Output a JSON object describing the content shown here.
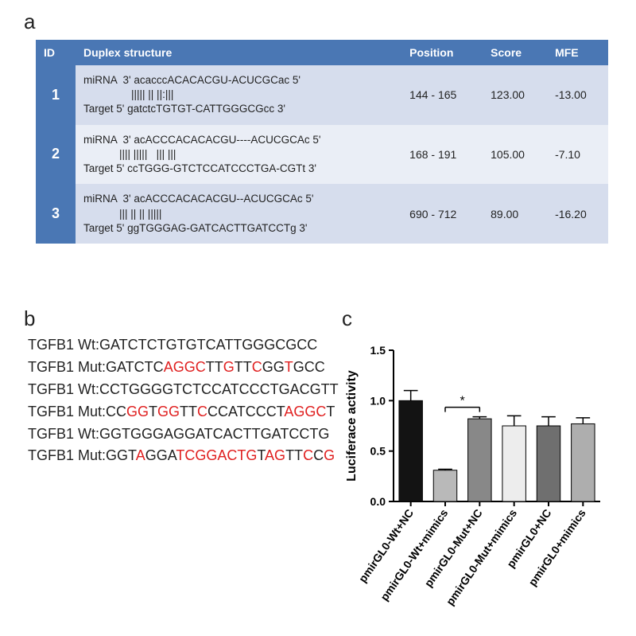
{
  "panel_labels": {
    "a": "a",
    "b": "b",
    "c": "c"
  },
  "panelA": {
    "header_bg": "#4a77b4",
    "header_text_color": "#ffffff",
    "row_bg_odd": "#d6dded",
    "row_bg_even": "#eaeef6",
    "id_col_bg": "#4a77b4",
    "font_size": 14,
    "columns": [
      "ID",
      "Duplex structure",
      "Position",
      "Score",
      "MFE"
    ],
    "rows": [
      {
        "id": "1",
        "miRNA": "miRNA  3' acacccACACACGU-ACUCGCac 5'",
        "align": "                ||||| || ||:|||",
        "target": "Target 5' gatctcTGTGT-CATTGGGCGcc 3'",
        "position": "144 - 165",
        "score": "123.00",
        "mfe": "-13.00"
      },
      {
        "id": "2",
        "miRNA": "miRNA  3' acACCCACACACGU----ACUCGCAc 5'",
        "align": "            |||| |||||   ||| |||",
        "target": "Target 5' ccTGGG-GTCTCCATCCCTGA-CGTt 3'",
        "position": "168 - 191",
        "score": "105.00",
        "mfe": "-7.10"
      },
      {
        "id": "3",
        "miRNA": "miRNA  3' acACCCACACACGU--ACUCGCAc 5'",
        "align": "            ||| || || |||||",
        "target": "Target 5' ggTGGGAG-GATCACTTGATCCTg 3'",
        "position": "690 - 712",
        "score": "89.00",
        "mfe": "-16.20"
      }
    ]
  },
  "panelB": {
    "prefix_wt": "TGFB1 Wt:",
    "prefix_mut": "TGFB1 Mut:",
    "normal_color": "#222222",
    "mutant_color": "#e02020",
    "font_size": 18,
    "lines": [
      {
        "label": "TGFB1 Wt:",
        "segments": [
          [
            "GATCTCTGTGTCATTGGGCGCC",
            false
          ]
        ]
      },
      {
        "label": "TGFB1 Mut:",
        "segments": [
          [
            "GATCTC",
            false
          ],
          [
            "AGGC",
            true
          ],
          [
            "TT",
            false
          ],
          [
            "G",
            true
          ],
          [
            "TT",
            false
          ],
          [
            "C",
            true
          ],
          [
            "GG",
            false
          ],
          [
            "T",
            true
          ],
          [
            "GCC",
            false
          ]
        ]
      },
      {
        "label": "TGFB1 Wt:",
        "segments": [
          [
            "CCTGGGGTCTCCATCCCTGACGTT",
            false
          ]
        ]
      },
      {
        "label": "TGFB1 Mut:",
        "segments": [
          [
            "CC",
            false
          ],
          [
            "GG",
            true
          ],
          [
            "T",
            false
          ],
          [
            "GG",
            true
          ],
          [
            "TT",
            false
          ],
          [
            "C",
            true
          ],
          [
            "CCATCCCT",
            false
          ],
          [
            "AGGC",
            true
          ],
          [
            "T",
            false
          ]
        ]
      },
      {
        "label": "TGFB1 Wt:",
        "segments": [
          [
            "GGTGGGAGGATCACTTGATCCTG",
            false
          ]
        ]
      },
      {
        "label": "TGFB1 Mut:",
        "segments": [
          [
            "GGT",
            false
          ],
          [
            "A",
            true
          ],
          [
            "GGA",
            false
          ],
          [
            "TCGGACTG",
            true
          ],
          [
            "T",
            false
          ],
          [
            "AG",
            true
          ],
          [
            "TT",
            false
          ],
          [
            "C",
            true
          ],
          [
            "C",
            false
          ],
          [
            "G",
            true
          ]
        ]
      }
    ]
  },
  "panelC": {
    "type": "bar",
    "y_label": "Luciferace activity",
    "ylim": [
      0,
      1.5
    ],
    "ytick_step": 0.5,
    "bar_width": 0.68,
    "axis_color": "#000000",
    "text_color": "#000000",
    "label_fontsize": 16,
    "tick_fontsize": 14,
    "xlabel_fontsize": 14,
    "sig_label": "*",
    "sig_between": [
      1,
      2
    ],
    "background": "#ffffff",
    "categories": [
      "pmirGL0-Wt+NC",
      "pmirGL0-Wt+mimics",
      "pmirGL0-Mut+NC",
      "pmirGL0-Mut+mimics",
      "pmirGL0+NC",
      "pmirGL0+mimics"
    ],
    "values": [
      1.0,
      0.31,
      0.82,
      0.75,
      0.75,
      0.77
    ],
    "errors": [
      0.1,
      0.01,
      0.02,
      0.1,
      0.09,
      0.06
    ],
    "bar_colors": [
      "#131313",
      "#b9b9b9",
      "#888888",
      "#ededed",
      "#6f6f6f",
      "#aeaeae"
    ]
  }
}
